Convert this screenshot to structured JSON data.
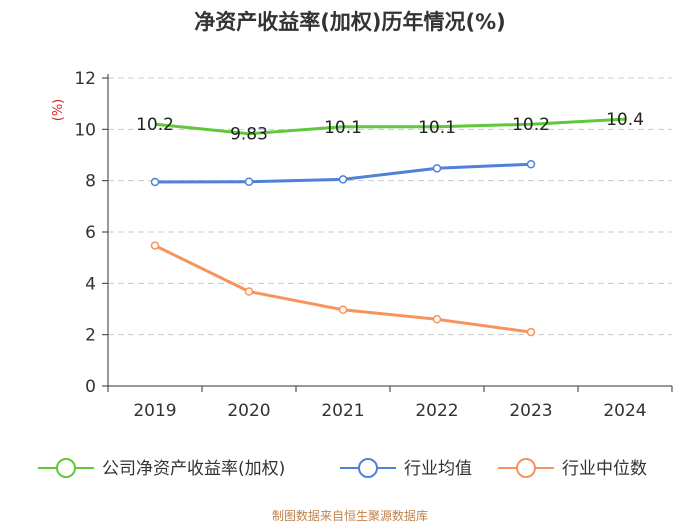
{
  "title": "净资产收益率(加权)历年情况(%)",
  "source": "制图数据来自恒生聚源数据库",
  "chart_data": {
    "type": "line",
    "title": "净资产收益率(加权)历年情况(%)",
    "xlabel": "",
    "ylabel": "(%)",
    "ylim": [
      0,
      12
    ],
    "yticks": [
      0,
      2,
      4,
      6,
      8,
      10,
      12
    ],
    "grid": true,
    "legend_position": "bottom",
    "categories": [
      "2019",
      "2020",
      "2021",
      "2022",
      "2023",
      "2024"
    ],
    "series": [
      {
        "name": "公司净资产收益率(加权)",
        "color": "#5fc83b",
        "values": [
          10.2,
          9.83,
          10.1,
          10.1,
          10.2,
          10.4
        ],
        "data_labels": [
          "10.2",
          "9.83",
          "10.1",
          "10.1",
          "10.2",
          "10.4"
        ],
        "show_markers": false
      },
      {
        "name": "行业均值",
        "color": "#4f81d8",
        "values": [
          7.95,
          7.96,
          8.05,
          8.48,
          8.64,
          null
        ],
        "show_markers": true
      },
      {
        "name": "行业中位数",
        "color": "#f7935b",
        "values": [
          5.47,
          3.68,
          2.97,
          2.6,
          2.1,
          null
        ],
        "show_markers": true
      }
    ]
  }
}
